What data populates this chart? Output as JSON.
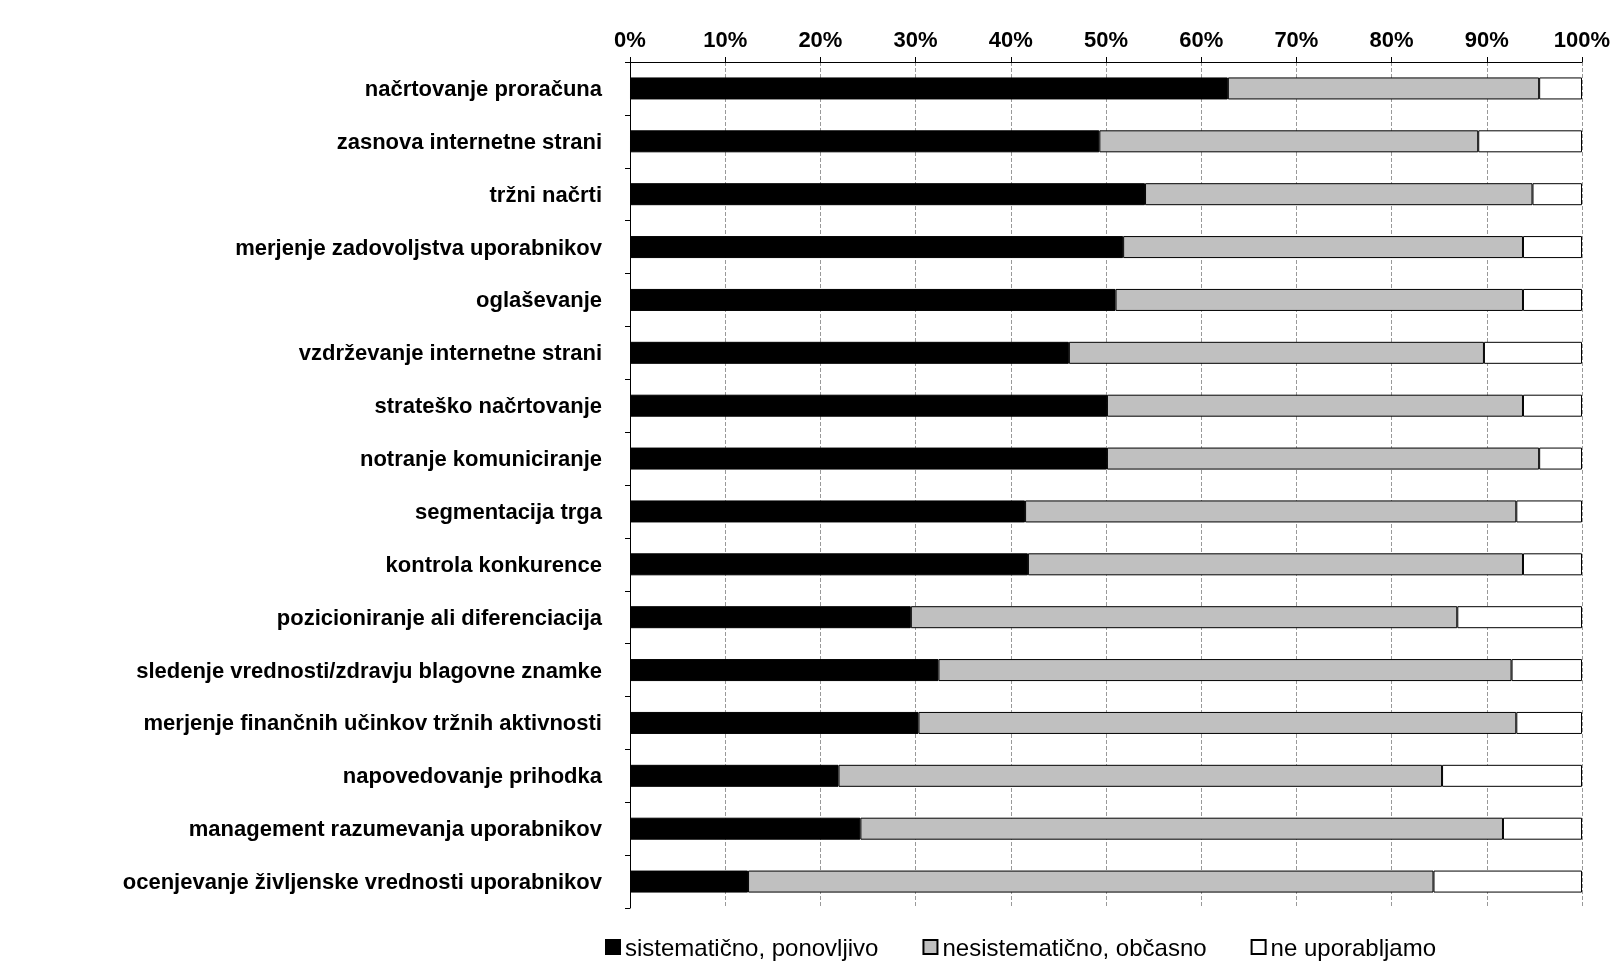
{
  "chart_data": {
    "type": "bar",
    "orientation": "horizontal",
    "stacked": true,
    "categories": [
      "načrtovanje proračuna",
      "zasnova internetne strani",
      "tržni načrti",
      "merjenje zadovoljstva uporabnikov",
      "oglaševanje",
      "vzdrževanje internetne strani",
      "strateško načrtovanje",
      "notranje komuniciranje",
      "segmentacija trga",
      "kontrola konkurence",
      "pozicioniranje ali diferenciacija",
      "sledenje vrednosti/zdravju blagovne znamke",
      "merjenje finančnih učinkov tržnih aktivnosti",
      "napovedovanje prihodka",
      "management razumevanja uporabnikov",
      "ocenjevanje življenske vrednosti uporabnikov"
    ],
    "series": [
      {
        "name": "sistematično, ponovljivo",
        "color": "#000000",
        "values": [
          62.8,
          49.3,
          54.1,
          51.8,
          51.0,
          46.1,
          50.1,
          50.1,
          41.5,
          41.8,
          29.5,
          32.4,
          30.3,
          21.9,
          24.2,
          12.4
        ]
      },
      {
        "name": "nesistematično, občasno",
        "color": "#c0c0c0",
        "values": [
          32.7,
          39.8,
          40.7,
          42.0,
          42.8,
          43.6,
          43.7,
          45.4,
          51.6,
          52.0,
          57.4,
          60.2,
          62.8,
          63.4,
          67.5,
          72.0
        ]
      },
      {
        "name": "ne uporabljamo",
        "color": "#ffffff",
        "values": [
          4.5,
          10.9,
          5.2,
          6.2,
          6.2,
          10.3,
          6.2,
          4.5,
          6.9,
          6.2,
          13.1,
          7.4,
          6.9,
          14.7,
          8.3,
          15.6
        ]
      }
    ],
    "xlim": [
      0,
      100
    ],
    "xticks": [
      {
        "value": 0,
        "label": "0%"
      },
      {
        "value": 10,
        "label": "10%"
      },
      {
        "value": 20,
        "label": "20%"
      },
      {
        "value": 30,
        "label": "30%"
      },
      {
        "value": 40,
        "label": "40%"
      },
      {
        "value": 50,
        "label": "50%"
      },
      {
        "value": 60,
        "label": "60%"
      },
      {
        "value": 70,
        "label": "70%"
      },
      {
        "value": 80,
        "label": "80%"
      },
      {
        "value": 90,
        "label": "90%"
      },
      {
        "value": 100,
        "label": "100%"
      }
    ],
    "grid": "x",
    "legend": "bottom"
  }
}
